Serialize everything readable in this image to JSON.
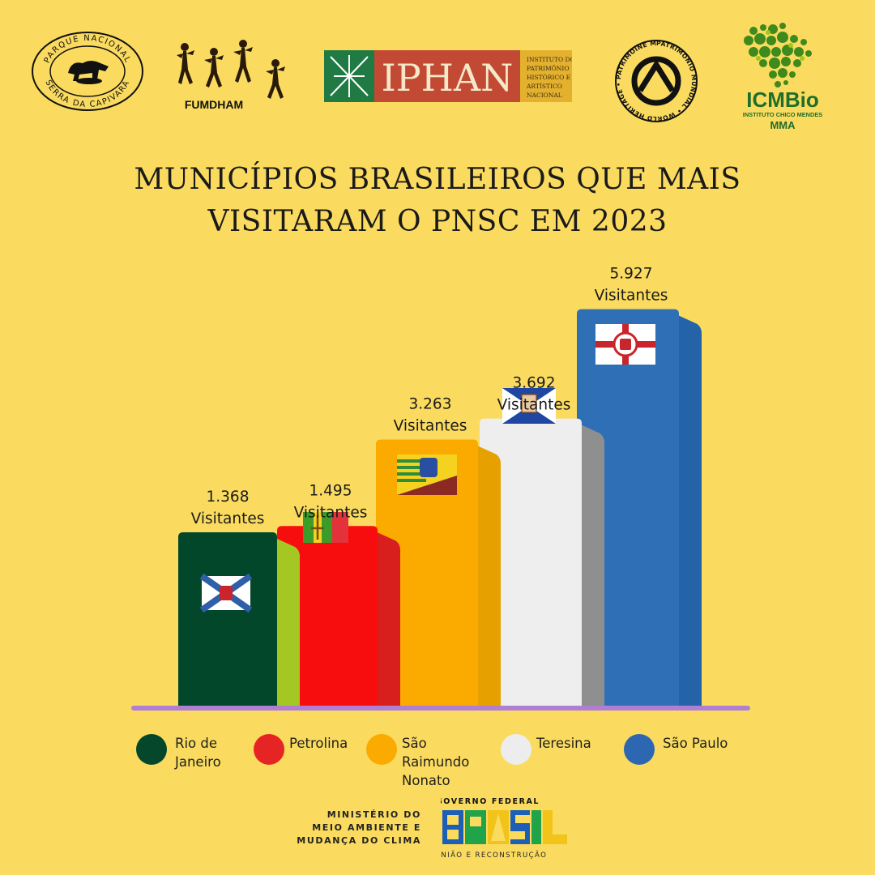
{
  "logos": {
    "capivara": {
      "top_text": "PARQUE NACIONAL",
      "bottom_text": "SERRA DA CAPIVARA"
    },
    "fumdham": {
      "name": "FUMDHAM"
    },
    "iphan": {
      "name": "IPHAN",
      "subtitle": [
        "INSTITUTO DO",
        "PATRIMÔNIO",
        "HISTÓRICO E",
        "ARTÍSTICO",
        "NACIONAL"
      ]
    },
    "heritage": {
      "text": "PATRIMONIO MUNDIAL • WORLD HERITAGE • PATRIMOINE MONDIAL •"
    },
    "icmbio": {
      "name": "ICMBio",
      "sub": "INSTITUTO CHICO MENDES",
      "sub2": "MMA"
    }
  },
  "title": {
    "line1": "MUNICÍPIOS BRASILEIROS QUE MAIS",
    "line2": "VISITARAM O PNSC EM 2023"
  },
  "chart_data": {
    "type": "bar",
    "categories": [
      "Rio de Janeiro",
      "Petrolina",
      "São Raimundo Nonato",
      "Teresina",
      "São Paulo"
    ],
    "values": [
      1368,
      1495,
      3263,
      3692,
      5927
    ],
    "value_labels": [
      "1.368",
      "1.495",
      "3.263",
      "3.692",
      "5.927"
    ],
    "unit_label": "Visitantes",
    "colors": [
      "#03472A",
      "#F70D0D",
      "#FBAA00",
      "#EEEEEE",
      "#2F6FB6"
    ],
    "side_colors": [
      "#A4C724",
      "#D91E1E",
      "#E6A000",
      "#8F8F8F",
      "#2563A8"
    ],
    "baseline_color": "#B07FD4",
    "legend_position": "bottom"
  },
  "legend": [
    {
      "label": "Rio de Janeiro",
      "color": "#04472A"
    },
    {
      "label": "Petrolina",
      "color": "#E72424"
    },
    {
      "label": "São Raimundo Nonato",
      "color": "#FBAA00"
    },
    {
      "label": "Teresina",
      "color": "#EDEDED"
    },
    {
      "label": "São Paulo",
      "color": "#2D67B2"
    }
  ],
  "footer": {
    "ministry": [
      "MINISTÉRIO DO",
      "MEIO AMBIENTE E",
      "MUDANÇA DO CLIMA"
    ],
    "gov_title": "GOVERNO FEDERAL",
    "gov_word": "BRASIL",
    "gov_sub": "UNIÃO E RECONSTRUÇÃO"
  }
}
